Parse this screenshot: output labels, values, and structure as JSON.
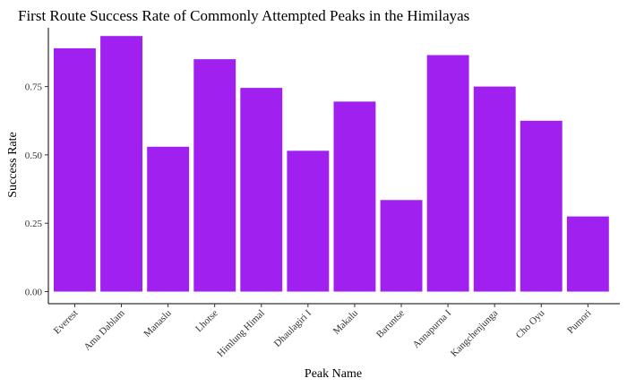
{
  "chart_data": {
    "type": "bar",
    "title": "First Route Success Rate of Commonly Attempted Peaks in the Himilayas",
    "xlabel": "Peak Name",
    "ylabel": "Success Rate",
    "categories": [
      "Everest",
      "Ama Dablam",
      "Manaslu",
      "Lhotse",
      "Himlung Himal",
      "Dhaulagiri I",
      "Makalu",
      "Baruntse",
      "Annapurna I",
      "Kangchenjunga",
      "Cho Oyu",
      "Pumori"
    ],
    "values": [
      0.89,
      0.935,
      0.53,
      0.85,
      0.745,
      0.515,
      0.695,
      0.335,
      0.865,
      0.75,
      0.625,
      0.275
    ],
    "ylim": [
      0,
      0.965
    ],
    "yticks": [
      0.0,
      0.25,
      0.5,
      0.75
    ],
    "ytick_labels": [
      "0.00",
      "0.25",
      "0.50",
      "0.75"
    ],
    "bar_color": "#A020F0",
    "grid": false,
    "legend": "none"
  }
}
